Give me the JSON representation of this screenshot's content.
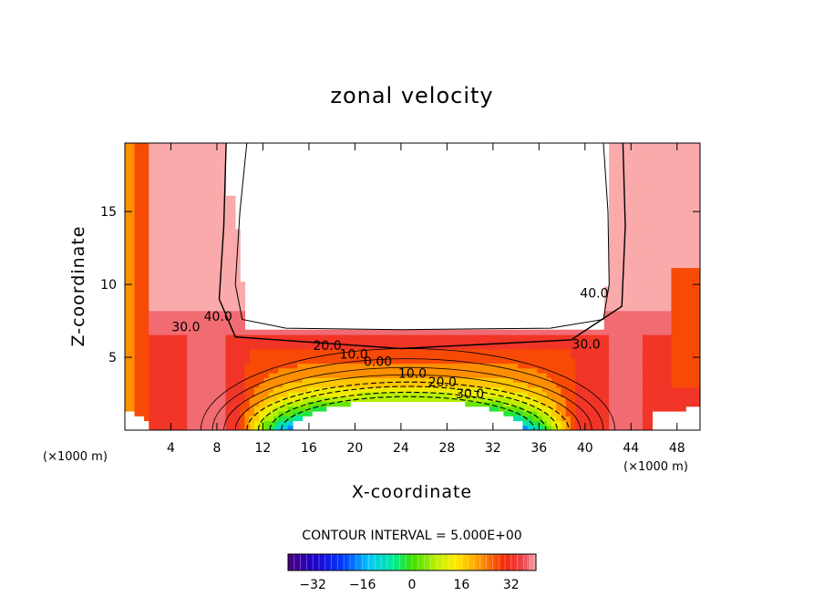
{
  "chart_data": {
    "type": "contour",
    "title": "zonal velocity",
    "xlabel": "X-coordinate",
    "ylabel": "Z-coordinate",
    "x_unit_note": "(×1000 m)",
    "contour_interval_label": "CONTOUR INTERVAL = 5.000E+00",
    "xlim": [
      0,
      50
    ],
    "ylim": [
      0,
      19.7
    ],
    "x_ticks": [
      4,
      8,
      12,
      16,
      20,
      24,
      28,
      32,
      36,
      40,
      44,
      48
    ],
    "y_ticks": [
      5,
      10,
      15
    ],
    "colorbar": {
      "range": [
        -40,
        40
      ],
      "ticks": [
        -32,
        -16,
        0,
        16,
        32
      ]
    },
    "contour_levels": [
      -30,
      -25,
      -20,
      -15,
      -10,
      -5,
      0,
      5,
      10,
      15,
      20,
      25,
      30,
      35,
      40
    ],
    "contour_labels": [
      {
        "text": "40.0",
        "x": 8.1,
        "z": 7.5
      },
      {
        "text": "30.0",
        "x": 5.3,
        "z": 6.8
      },
      {
        "text": "20.0",
        "x": 17.6,
        "z": 5.5
      },
      {
        "text": "10.0",
        "x": 19.9,
        "z": 4.9
      },
      {
        "text": "0.00",
        "x": 22.0,
        "z": 4.4
      },
      {
        "text": "10.0",
        "x": 25.0,
        "z": 3.6
      },
      {
        "text": "20.0",
        "x": 27.6,
        "z": 3.0
      },
      {
        "text": "30.0",
        "x": 30.0,
        "z": 2.2
      },
      {
        "text": "30.0",
        "x": 40.1,
        "z": 5.6
      },
      {
        "text": "40.0",
        "x": 40.8,
        "z": 9.1
      }
    ],
    "colors": {
      "background": "#ffffff",
      "positive_max": "#f0000f",
      "zero": "#4ef000",
      "negative_max": "#3a0099"
    }
  }
}
